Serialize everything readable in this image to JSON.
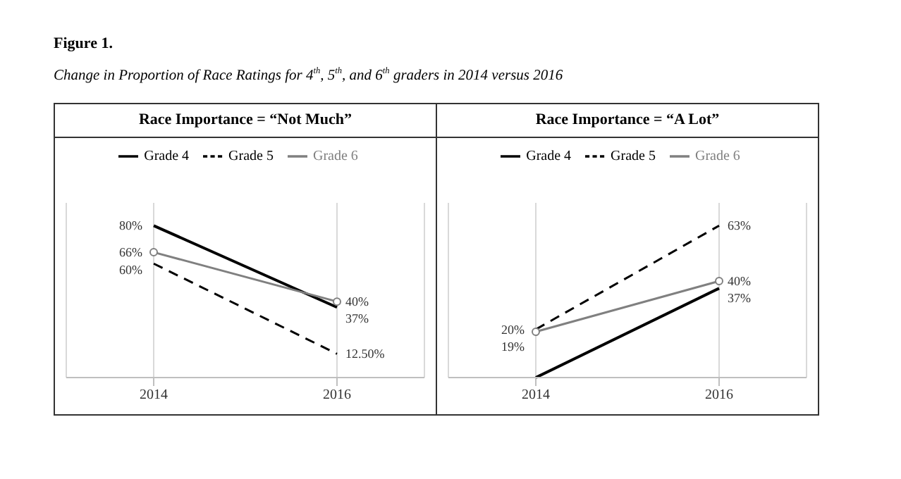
{
  "chart_data": [
    {
      "type": "line",
      "title": "Race Importance = “Not Much”",
      "annotations": [
        "Figure 1.",
        "Change in Proportion of Race Ratings for 4$^{th}$, 5$^{th}$, and 6$^{th}$ graders in 2014 versus 2016"
      ],
      "categories": [
        "2014",
        "2016"
      ],
      "grid": "x",
      "legend": "top",
      "series": [
        {
          "name": "Grade 4",
          "color": "#000000",
          "values": [
            80,
            37
          ],
          "value_labels": [
            "80%",
            "37%"
          ],
          "line_style": "solid",
          "marker": "none"
        },
        {
          "name": "Grade 5",
          "color": "#000000",
          "values": [
            60,
            12.5
          ],
          "value_labels": [
            "60%",
            "12.50%"
          ],
          "line_style": "dashed",
          "marker": "none"
        },
        {
          "name": "Grade 6",
          "color": "#808080",
          "values": [
            66,
            40
          ],
          "value_labels": [
            "66%",
            "40%"
          ],
          "line_style": "solid",
          "marker": "circle"
        }
      ]
    },
    {
      "type": "line",
      "title": "Race Importance = “A Lot”",
      "categories": [
        "2014",
        "2016"
      ],
      "grid": "x",
      "legend": "top",
      "series": [
        {
          "name": "Grade 4",
          "color": "#000000",
          "values": [
            0,
            37
          ],
          "value_labels": [
            null,
            "37%"
          ],
          "line_style": "solid",
          "marker": "none"
        },
        {
          "name": "Grade 5",
          "color": "#000000",
          "values": [
            20,
            63
          ],
          "value_labels": [
            "20%",
            "63%"
          ],
          "line_style": "dashed",
          "marker": "none"
        },
        {
          "name": "Grade 6",
          "color": "#808080",
          "values": [
            19,
            40
          ],
          "value_labels": [
            "19%",
            "40%"
          ],
          "line_style": "solid",
          "marker": "circle"
        }
      ]
    }
  ]
}
